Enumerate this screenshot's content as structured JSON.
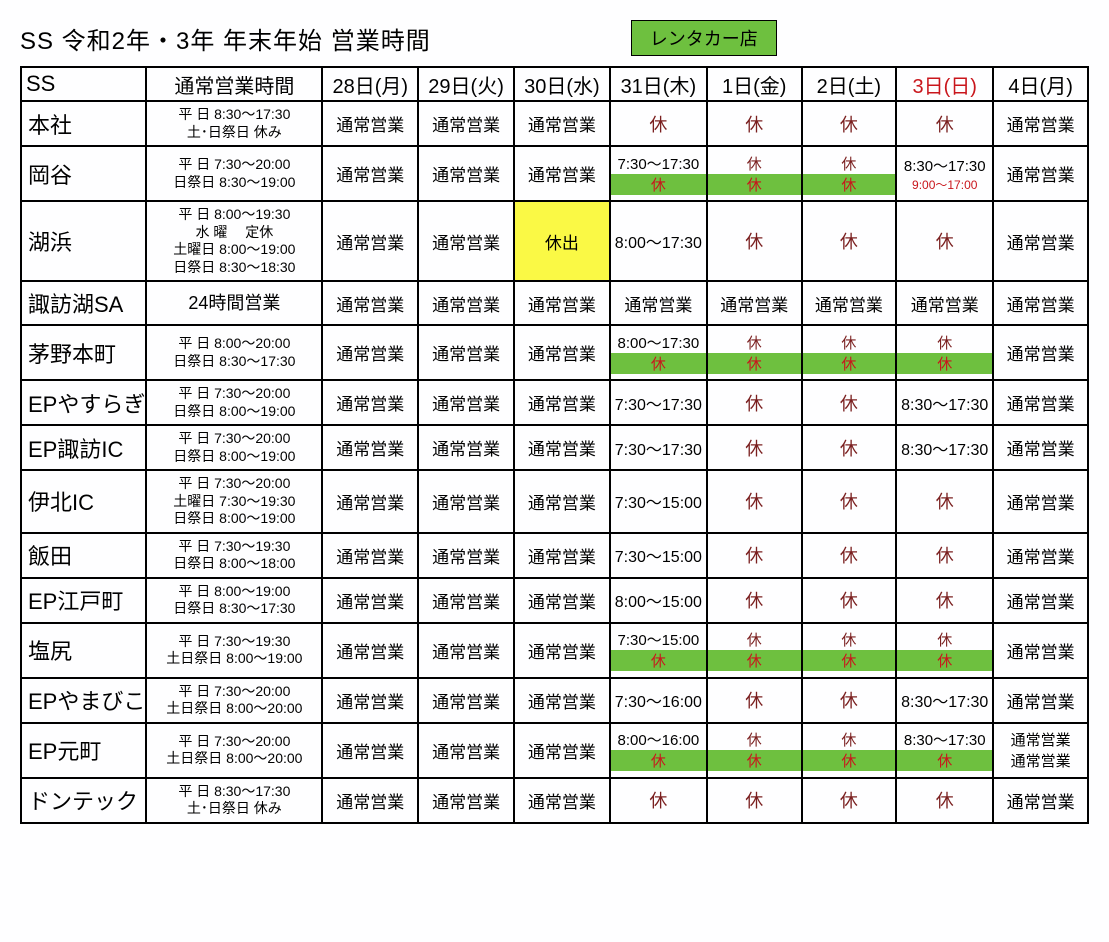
{
  "title": "SS 令和2年・3年 年末年始 営業時間",
  "legend": "レンタカー店",
  "colors": {
    "green": "#6ec03f",
    "yellow": "#faf945",
    "red_text": "#c9161c",
    "dark_red_text": "#7a1f1f",
    "background": "#fefeff",
    "border": "#000000"
  },
  "headers": {
    "ss": "SS",
    "normal": "通常営業時間",
    "d28": "28日(月)",
    "d29": "29日(火)",
    "d30": "30日(水)",
    "d31": "31日(木)",
    "d01": "1日(金)",
    "d02": "2日(土)",
    "d03": "3日(日)",
    "d04": "4日(月)"
  },
  "rows": {
    "honsha": {
      "name": "本社",
      "hours_l1": "平 日 8:30～17:30",
      "hours_l2": "土･日祭日 休み",
      "d28": "通常営業",
      "d29": "通常営業",
      "d30": "通常営業",
      "d31": "休",
      "d01": "休",
      "d02": "休",
      "d03": "休",
      "d04": "通常営業"
    },
    "okaya": {
      "name": "岡谷",
      "hours_l1": "平 日 7:30～20:00",
      "hours_l2": "日祭日 8:30～19:00",
      "d28": "通常営業",
      "d29": "通常営業",
      "d30": "通常営業",
      "d31_top": "7:30～17:30",
      "d31_bot": "休",
      "d01_top": "休",
      "d01_bot": "休",
      "d02_top": "休",
      "d02_bot": "休",
      "d03_top": "8:30～17:30",
      "d03_bot": "9:00～17:00",
      "d04": "通常営業"
    },
    "kohama": {
      "name": "湖浜",
      "hours_l1": "平 日 8:00～19:30",
      "hours_l2": "水 曜　 定休",
      "hours_l3": "土曜日 8:00～19:00",
      "hours_l4": "日祭日 8:30～18:30",
      "d28": "通常営業",
      "d29": "通常営業",
      "d30": "休出",
      "d31": "8:00～17:30",
      "d01": "休",
      "d02": "休",
      "d03": "休",
      "d04": "通常営業"
    },
    "suwako": {
      "name": "諏訪湖SA",
      "hours": "24時間営業",
      "d28": "通常営業",
      "d29": "通常営業",
      "d30": "通常営業",
      "d31": "通常営業",
      "d01": "通常営業",
      "d02": "通常営業",
      "d03": "通常営業",
      "d04": "通常営業"
    },
    "chino": {
      "name": "茅野本町",
      "hours_l1": "平 日 8:00～20:00",
      "hours_l2": "日祭日 8:30～17:30",
      "d28": "通常営業",
      "d29": "通常営業",
      "d30": "通常営業",
      "d31_top": "8:00～17:30",
      "d31_bot": "休",
      "d01_top": "休",
      "d01_bot": "休",
      "d02_top": "休",
      "d02_bot": "休",
      "d03_top": "休",
      "d03_bot": "休",
      "d04": "通常営業"
    },
    "epyasuragi": {
      "name": "EPやすらぎ",
      "hours_l1": "平 日 7:30～20:00",
      "hours_l2": "日祭日 8:00～19:00",
      "d28": "通常営業",
      "d29": "通常営業",
      "d30": "通常営業",
      "d31": "7:30～17:30",
      "d01": "休",
      "d02": "休",
      "d03": "8:30～17:30",
      "d04": "通常営業"
    },
    "epsuwa": {
      "name": "EP諏訪IC",
      "hours_l1": "平 日 7:30～20:00",
      "hours_l2": "日祭日 8:00～19:00",
      "d28": "通常営業",
      "d29": "通常営業",
      "d30": "通常営業",
      "d31": "7:30～17:30",
      "d01": "休",
      "d02": "休",
      "d03": "8:30～17:30",
      "d04": "通常営業"
    },
    "ihoku": {
      "name": "伊北IC",
      "hours_l1": "平 日 7:30～20:00",
      "hours_l2": "土曜日 7:30～19:30",
      "hours_l3": "日祭日 8:00～19:00",
      "d28": "通常営業",
      "d29": "通常営業",
      "d30": "通常営業",
      "d31": "7:30～15:00",
      "d01": "休",
      "d02": "休",
      "d03": "休",
      "d04": "通常営業"
    },
    "iida": {
      "name": "飯田",
      "hours_l1": "平 日 7:30～19:30",
      "hours_l2": "日祭日 8:00～18:00",
      "d28": "通常営業",
      "d29": "通常営業",
      "d30": "通常営業",
      "d31": "7:30～15:00",
      "d01": "休",
      "d02": "休",
      "d03": "休",
      "d04": "通常営業"
    },
    "epedo": {
      "name": "EP江戸町",
      "hours_l1": "平 日 8:00～19:00",
      "hours_l2": "日祭日 8:30～17:30",
      "d28": "通常営業",
      "d29": "通常営業",
      "d30": "通常営業",
      "d31": "8:00～15:00",
      "d01": "休",
      "d02": "休",
      "d03": "休",
      "d04": "通常営業"
    },
    "shiojiri": {
      "name": "塩尻",
      "hours_l1": "平 日 7:30～19:30",
      "hours_l2": "土日祭日 8:00～19:00",
      "d28": "通常営業",
      "d29": "通常営業",
      "d30": "通常営業",
      "d31_top": "7:30～15:00",
      "d31_bot": "休",
      "d01_top": "休",
      "d01_bot": "休",
      "d02_top": "休",
      "d02_bot": "休",
      "d03_top": "休",
      "d03_bot": "休",
      "d04": "通常営業"
    },
    "epyamabiko": {
      "name": "EPやまびこ",
      "hours_l1": "平 日 7:30～20:00",
      "hours_l2": "土日祭日 8:00～20:00",
      "d28": "通常営業",
      "d29": "通常営業",
      "d30": "通常営業",
      "d31": "7:30～16:00",
      "d01": "休",
      "d02": "休",
      "d03": "8:30～17:30",
      "d04": "通常営業"
    },
    "epmotomachi": {
      "name": "EP元町",
      "hours_l1": "平 日 7:30～20:00",
      "hours_l2": "土日祭日 8:00～20:00",
      "d28": "通常営業",
      "d29": "通常営業",
      "d30": "通常営業",
      "d31_top": "8:00～16:00",
      "d31_bot": "休",
      "d01_top": "休",
      "d01_bot": "休",
      "d02_top": "休",
      "d02_bot": "休",
      "d03_top": "8:30～17:30",
      "d03_bot": "休",
      "d04_top": "通常営業",
      "d04_bot": "通常営業"
    },
    "dontec": {
      "name": "ドンテック",
      "hours_l1": "平 日 8:30～17:30",
      "hours_l2": "土･日祭日 休み",
      "d28": "通常営業",
      "d29": "通常営業",
      "d30": "通常営業",
      "d31": "休",
      "d01": "休",
      "d02": "休",
      "d03": "休",
      "d04": "通常営業"
    }
  }
}
